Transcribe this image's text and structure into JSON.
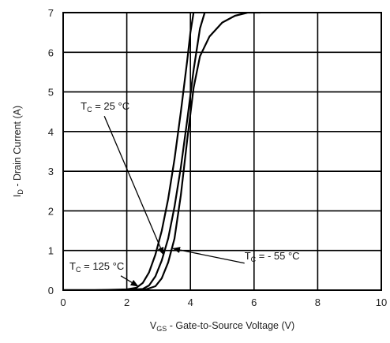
{
  "chart_data": {
    "type": "line",
    "title": "",
    "xlabel": {
      "main": "V",
      "sub": "GS",
      "rest": " - Gate-to-Source Voltage (V)"
    },
    "ylabel": {
      "main": "I",
      "sub": "D",
      "rest": " - Drain Current (A)"
    },
    "xlim": [
      0,
      10
    ],
    "ylim": [
      0,
      7
    ],
    "xticks": [
      0,
      2,
      4,
      6,
      8,
      10
    ],
    "yticks": [
      0,
      1,
      2,
      3,
      4,
      5,
      6,
      7
    ],
    "grid": true,
    "series": [
      {
        "name": "25 °C",
        "x": [
          0,
          1,
          2,
          2.5,
          2.7,
          2.9,
          3.1,
          3.3,
          3.5,
          3.7,
          3.9,
          4.1,
          4.3,
          4.45
        ],
        "y": [
          0,
          0,
          0.01,
          0.03,
          0.12,
          0.35,
          0.75,
          1.3,
          2.1,
          3.1,
          4.3,
          5.55,
          6.6,
          7
        ]
      },
      {
        "name": "125 °C",
        "x": [
          0,
          1,
          2,
          2.3,
          2.5,
          2.7,
          2.9,
          3.1,
          3.3,
          3.5,
          3.7,
          3.9,
          4.0,
          4.1
        ],
        "y": [
          0,
          0,
          0.02,
          0.06,
          0.18,
          0.45,
          0.9,
          1.5,
          2.3,
          3.3,
          4.5,
          5.8,
          6.5,
          7
        ]
      },
      {
        "name": "- 55 °C",
        "x": [
          0,
          1,
          2,
          2.6,
          2.9,
          3.1,
          3.3,
          3.5,
          3.7,
          3.9,
          4.1,
          4.3,
          4.6,
          5.0,
          5.4,
          5.8,
          6.2
        ],
        "y": [
          0,
          0,
          0.0,
          0.02,
          0.1,
          0.3,
          0.7,
          1.3,
          2.4,
          3.8,
          5.1,
          5.9,
          6.4,
          6.75,
          6.92,
          7.0,
          7.0
        ]
      }
    ],
    "annotations": [
      {
        "label": {
          "main": "T",
          "sub": "C",
          "rest": " = 25 °C"
        },
        "text_at": [
          0.55,
          4.55
        ],
        "arrow_to": [
          3.15,
          0.9
        ]
      },
      {
        "label": {
          "main": "T",
          "sub": "C",
          "rest": " = 125 °C"
        },
        "text_at": [
          0.2,
          0.52
        ],
        "arrow_to": [
          2.35,
          0.1
        ]
      },
      {
        "label": {
          "main": "T",
          "sub": "C",
          "rest": " = - 55 °C"
        },
        "text_at": [
          5.7,
          0.78
        ],
        "arrow_to": [
          3.45,
          1.05
        ]
      }
    ]
  }
}
